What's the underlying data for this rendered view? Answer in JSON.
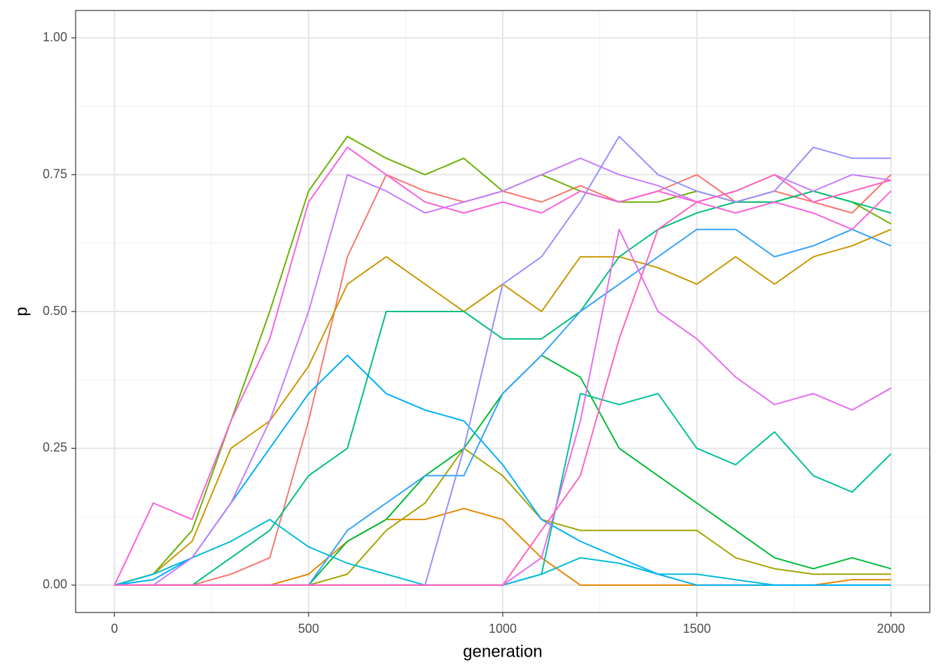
{
  "chart_data": {
    "type": "line",
    "xlabel": "generation",
    "ylabel": "p",
    "x": [
      0,
      100,
      200,
      300,
      400,
      500,
      600,
      700,
      800,
      900,
      1000,
      1100,
      1200,
      1300,
      1400,
      1500,
      1600,
      1700,
      1800,
      1900,
      2000
    ],
    "xlim": [
      -100,
      2100
    ],
    "xticks": [
      0,
      500,
      1000,
      1500,
      2000
    ],
    "xminor": [
      250,
      750,
      1250,
      1750
    ],
    "ylim": [
      -0.05,
      1.05
    ],
    "yticks": [
      {
        "value": 0,
        "label": "0.00"
      },
      0.25,
      {
        "value": 0.5,
        "label": "0.50"
      },
      0.75,
      {
        "value": 1,
        "label": "1.00"
      }
    ],
    "yminor": [
      0.125,
      0.375,
      0.625,
      0.875
    ],
    "grid": true,
    "series": [
      {
        "color": "#F8766D",
        "values": [
          0,
          0,
          0,
          0.02,
          0.05,
          0.3,
          0.6,
          0.75,
          0.72,
          0.7,
          0.72,
          0.7,
          0.73,
          0.7,
          0.72,
          0.75,
          0.7,
          0.72,
          0.7,
          0.68,
          0.75
        ]
      },
      {
        "color": "#E58700",
        "values": [
          0,
          0,
          0,
          0,
          0,
          0.02,
          0.08,
          0.12,
          0.12,
          0.14,
          0.12,
          0.05,
          0,
          0,
          0,
          0,
          0,
          0,
          0,
          0.01,
          0.01
        ]
      },
      {
        "color": "#C99800",
        "values": [
          0,
          0.02,
          0.08,
          0.25,
          0.3,
          0.4,
          0.55,
          0.6,
          0.55,
          0.5,
          0.55,
          0.5,
          0.6,
          0.6,
          0.58,
          0.55,
          0.6,
          0.55,
          0.6,
          0.62,
          0.65
        ]
      },
      {
        "color": "#A3A500",
        "values": [
          0,
          0,
          0,
          0,
          0,
          0,
          0.02,
          0.1,
          0.15,
          0.25,
          0.2,
          0.12,
          0.1,
          0.1,
          0.1,
          0.1,
          0.05,
          0.03,
          0.02,
          0.02,
          0.02
        ]
      },
      {
        "color": "#6BB100",
        "values": [
          0,
          0.02,
          0.1,
          0.3,
          0.5,
          0.72,
          0.82,
          0.78,
          0.75,
          0.78,
          0.72,
          0.75,
          0.72,
          0.7,
          0.7,
          0.72,
          0.7,
          0.7,
          0.72,
          0.7,
          0.66
        ]
      },
      {
        "color": "#00BA38",
        "values": [
          0,
          0,
          0,
          0,
          0,
          0,
          0.08,
          0.12,
          0.2,
          0.25,
          0.35,
          0.42,
          0.38,
          0.25,
          0.2,
          0.15,
          0.1,
          0.05,
          0.03,
          0.05,
          0.03
        ]
      },
      {
        "color": "#00BF7D",
        "values": [
          0,
          0,
          0,
          0.05,
          0.1,
          0.2,
          0.25,
          0.5,
          0.5,
          0.5,
          0.45,
          0.45,
          0.5,
          0.6,
          0.65,
          0.68,
          0.7,
          0.7,
          0.72,
          0.7,
          0.68
        ]
      },
      {
        "color": "#00C19A",
        "values": [
          0,
          0,
          0,
          0,
          0,
          0,
          0,
          0,
          0,
          0,
          0,
          0.02,
          0.35,
          0.33,
          0.35,
          0.25,
          0.22,
          0.28,
          0.2,
          0.17,
          0.24
        ]
      },
      {
        "color": "#00BCD8",
        "values": [
          0,
          0.02,
          0.05,
          0.08,
          0.12,
          0.07,
          0.04,
          0.02,
          0,
          0,
          0,
          0.02,
          0.05,
          0.04,
          0.02,
          0.02,
          0.01,
          0,
          0,
          0,
          0
        ]
      },
      {
        "color": "#00B0F6",
        "values": [
          0,
          0.01,
          0.05,
          0.15,
          0.25,
          0.35,
          0.42,
          0.35,
          0.32,
          0.3,
          0.22,
          0.12,
          0.08,
          0.05,
          0.02,
          0,
          0,
          0,
          0,
          0,
          0
        ]
      },
      {
        "color": "#35A2FF",
        "values": [
          0,
          0,
          0,
          0,
          0,
          0,
          0.1,
          0.15,
          0.2,
          0.2,
          0.35,
          0.42,
          0.5,
          0.55,
          0.6,
          0.65,
          0.65,
          0.6,
          0.62,
          0.65,
          0.62
        ]
      },
      {
        "color": "#9590FF",
        "values": [
          0,
          0,
          0,
          0,
          0,
          0,
          0,
          0,
          0,
          0.25,
          0.55,
          0.6,
          0.7,
          0.82,
          0.75,
          0.72,
          0.7,
          0.72,
          0.8,
          0.78,
          0.78
        ]
      },
      {
        "color": "#C77CFF",
        "values": [
          0,
          0,
          0.05,
          0.15,
          0.3,
          0.5,
          0.75,
          0.72,
          0.68,
          0.7,
          0.72,
          0.75,
          0.78,
          0.75,
          0.73,
          0.7,
          0.72,
          0.75,
          0.72,
          0.75,
          0.74
        ]
      },
      {
        "color": "#E76BF3",
        "values": [
          0,
          0,
          0,
          0,
          0,
          0,
          0,
          0,
          0,
          0,
          0,
          0.05,
          0.3,
          0.65,
          0.5,
          0.45,
          0.38,
          0.33,
          0.35,
          0.32,
          0.36
        ]
      },
      {
        "color": "#FA62DB",
        "values": [
          0,
          0.15,
          0.12,
          0.3,
          0.45,
          0.7,
          0.8,
          0.75,
          0.7,
          0.68,
          0.7,
          0.68,
          0.72,
          0.7,
          0.72,
          0.7,
          0.68,
          0.7,
          0.68,
          0.65,
          0.72
        ]
      },
      {
        "color": "#FF62BC",
        "values": [
          0,
          0,
          0,
          0,
          0,
          0,
          0,
          0,
          0,
          0,
          0,
          0.1,
          0.2,
          0.45,
          0.65,
          0.7,
          0.72,
          0.75,
          0.7,
          0.72,
          0.74
        ]
      }
    ]
  }
}
